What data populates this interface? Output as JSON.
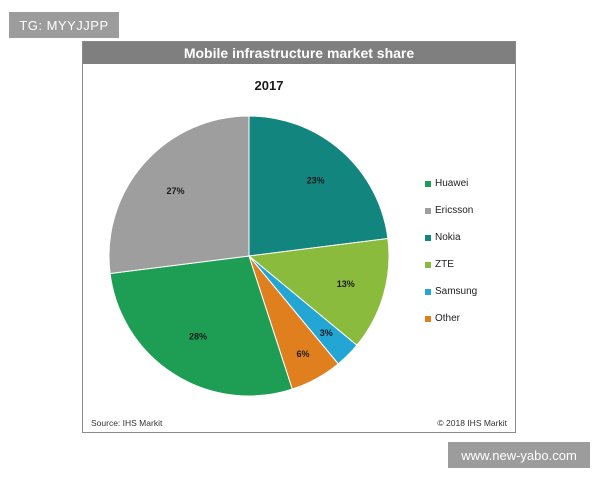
{
  "watermarks": {
    "top": "TG: MYYJJPP",
    "bottom": "www.new-yabo.com"
  },
  "chart_data": {
    "type": "pie",
    "title": "Mobile infrastructure market share",
    "subtitle": "2017",
    "categories": [
      "Huawei",
      "Ericsson",
      "Nokia",
      "ZTE",
      "Samsung",
      "Other"
    ],
    "values": [
      28,
      27,
      23,
      13,
      3,
      6
    ],
    "colors": [
      "#1e9e55",
      "#9e9e9e",
      "#12857e",
      "#8bbb3c",
      "#23a6d4",
      "#e07f1e"
    ],
    "data_labels": [
      "28%",
      "27%",
      "23%",
      "13%",
      "3%",
      "6%"
    ],
    "legend_position": "right",
    "source": "Source: IHS Markit",
    "copyright": "© 2018 IHS Markit"
  }
}
